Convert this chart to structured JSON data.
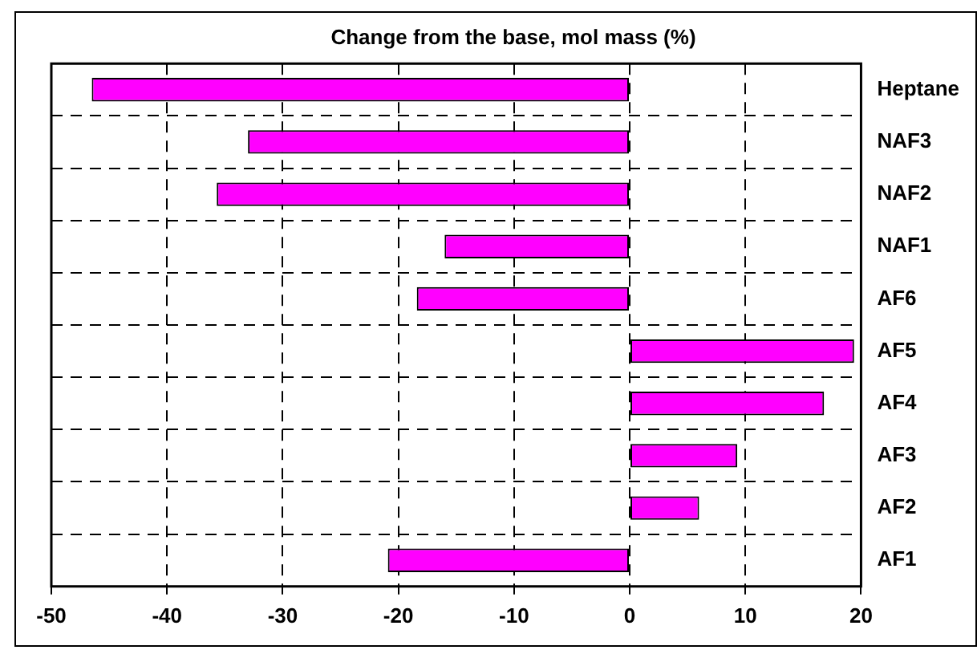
{
  "chart_data": {
    "type": "bar",
    "orientation": "horizontal",
    "title": "Change from the base, mol mass (%)",
    "categories": [
      "Heptane",
      "NAF3",
      "NAF2",
      "NAF1",
      "AF6",
      "AF5",
      "AF4",
      "AF3",
      "AF2",
      "AF1"
    ],
    "values": [
      -46.5,
      -33.0,
      -35.7,
      -16.0,
      -18.4,
      19.4,
      16.8,
      9.3,
      6.0,
      -20.9
    ],
    "color": "#ff00ff",
    "xlim": [
      -50,
      20
    ],
    "xticks": [
      -50,
      -40,
      -30,
      -20,
      -10,
      0,
      10,
      20
    ],
    "grid": true
  }
}
